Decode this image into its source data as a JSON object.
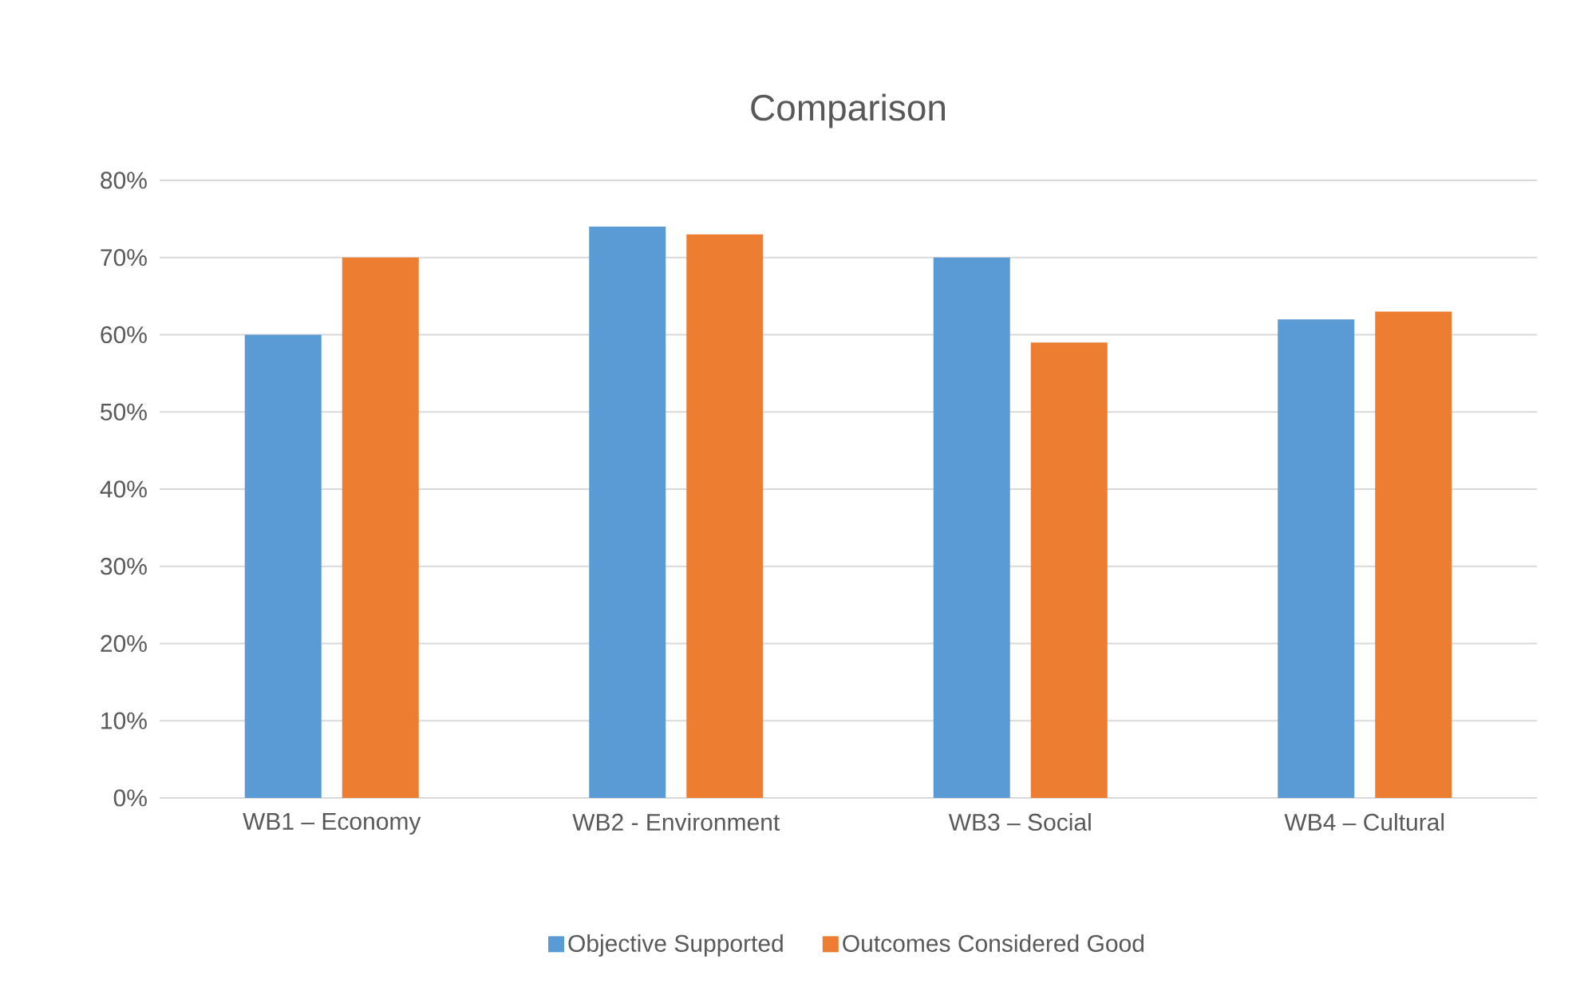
{
  "chart_data": {
    "type": "bar",
    "title": "Comparison",
    "categories": [
      "WB1 – Economy",
      "WB2 - Environment",
      "WB3 – Social",
      "WB4 – Cultural"
    ],
    "series": [
      {
        "name": "Objective Supported",
        "color": "#5b9bd5",
        "values": [
          60,
          74,
          70,
          62
        ]
      },
      {
        "name": "Outcomes Considered Good",
        "color": "#ed7d31",
        "values": [
          70,
          73,
          59,
          63
        ]
      }
    ],
    "ylim": [
      0,
      80
    ],
    "yticks": [
      {
        "value": 0,
        "label": "0%"
      },
      {
        "value": 10,
        "label": "10%"
      },
      {
        "value": 20,
        "label": "20%"
      },
      {
        "value": 30,
        "label": "30%"
      },
      {
        "value": 40,
        "label": "40%"
      },
      {
        "value": 50,
        "label": "50%"
      },
      {
        "value": 60,
        "label": "60%"
      },
      {
        "value": 70,
        "label": "70%"
      },
      {
        "value": 80,
        "label": "80%"
      }
    ],
    "grid": "y",
    "legend": "bottom"
  }
}
